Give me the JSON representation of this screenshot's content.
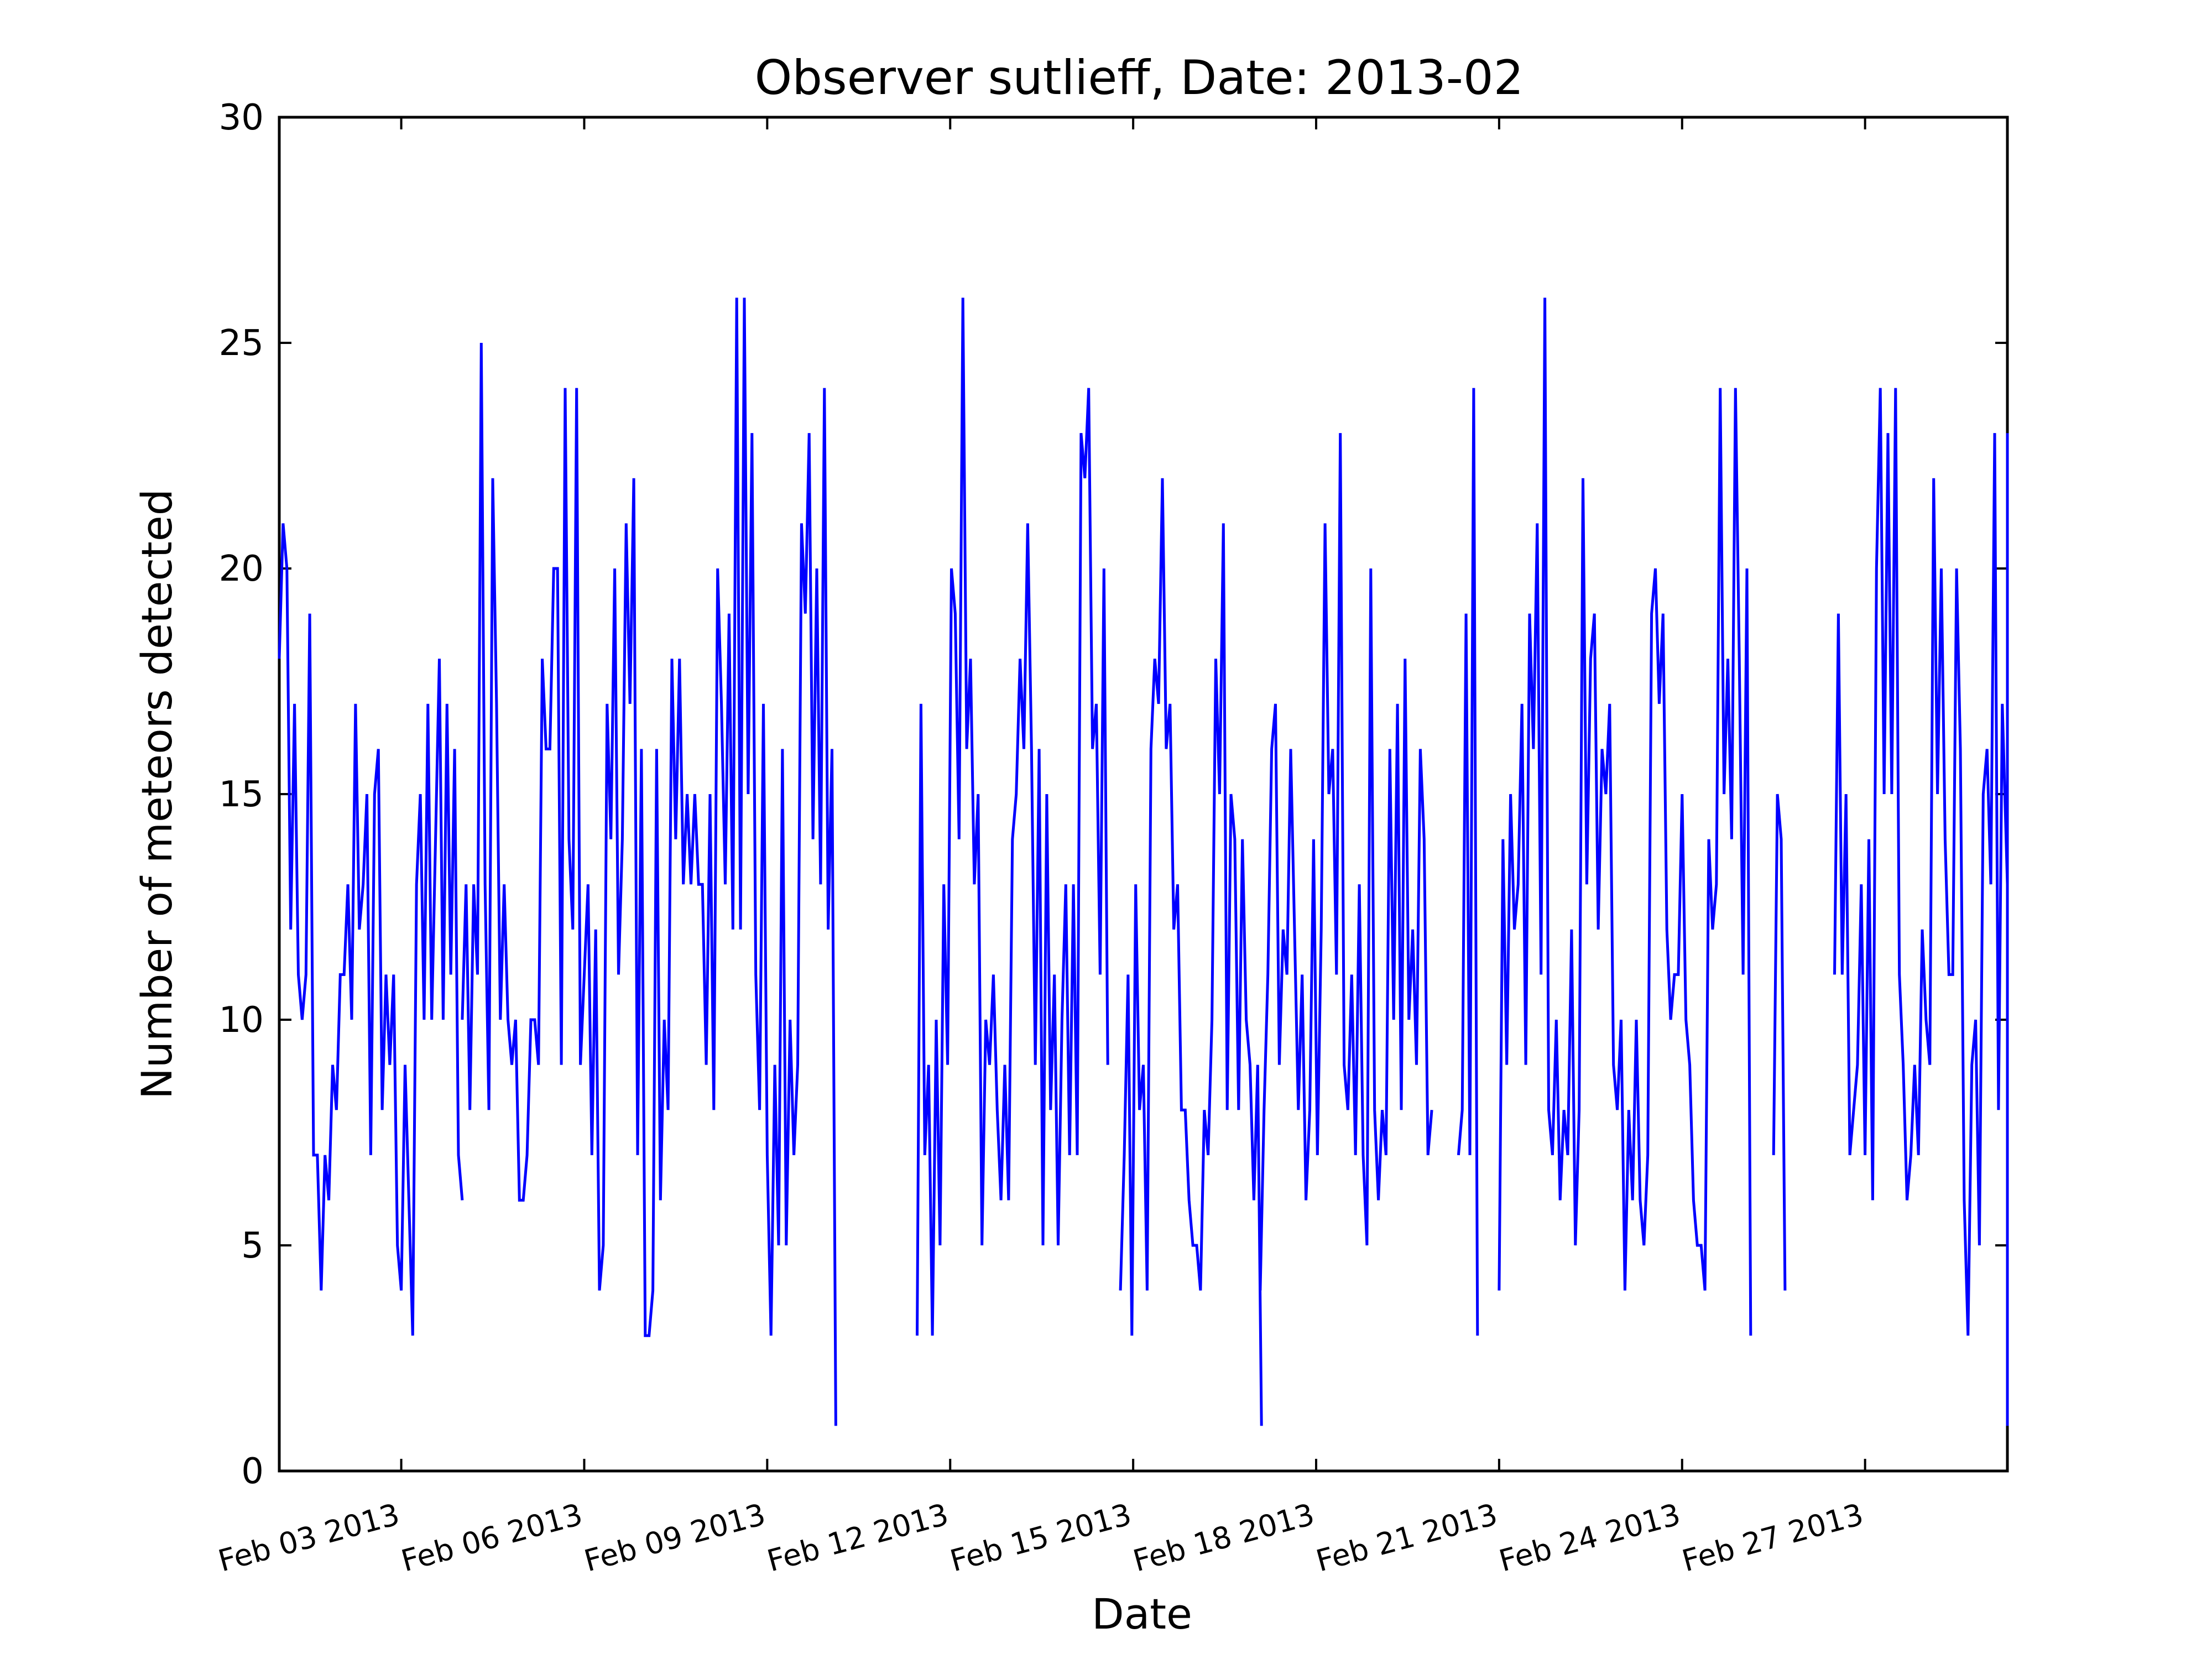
{
  "chart_data": {
    "type": "line",
    "title": "Observer sutlieff, Date: 2013-02",
    "xlabel": "Date",
    "ylabel": "Number of meteors detected",
    "x_axis": "date",
    "xlim": [
      "2013-02-01T00:00",
      "2013-03-01T08:00"
    ],
    "ylim": [
      0,
      30
    ],
    "yticks": [
      0,
      5,
      10,
      15,
      20,
      25,
      30
    ],
    "xticks": [
      {
        "date": "2013-02-03",
        "label": "Feb 03 2013"
      },
      {
        "date": "2013-02-06",
        "label": "Feb 06 2013"
      },
      {
        "date": "2013-02-09",
        "label": "Feb 09 2013"
      },
      {
        "date": "2013-02-12",
        "label": "Feb 12 2013"
      },
      {
        "date": "2013-02-15",
        "label": "Feb 15 2013"
      },
      {
        "date": "2013-02-18",
        "label": "Feb 18 2013"
      },
      {
        "date": "2013-02-21",
        "label": "Feb 21 2013"
      },
      {
        "date": "2013-02-24",
        "label": "Feb 24 2013"
      },
      {
        "date": "2013-02-27",
        "label": "Feb 27 2013"
      }
    ],
    "grid": false,
    "legend": "none",
    "line_color": "#0000ff",
    "series": [
      {
        "segments": [
          {
            "start": "2013-02-01T00:00",
            "step_hours": 1.5,
            "values": [
              18,
              21,
              20,
              12,
              17,
              11,
              10,
              11,
              19,
              7,
              7,
              4,
              7,
              6,
              9,
              8,
              11,
              11,
              13,
              10,
              17,
              12,
              13,
              15,
              7,
              15,
              16,
              8,
              11,
              9,
              11,
              5,
              4,
              9,
              6,
              3,
              13,
              15,
              10,
              17,
              10,
              14,
              18,
              10,
              17,
              11,
              16,
              7,
              6
            ]
          },
          {
            "start": "2013-02-04T00:00",
            "step_hours": 1.5,
            "values": [
              10,
              13,
              8,
              13,
              11,
              25,
              13,
              8,
              22,
              17,
              10,
              13,
              10,
              9,
              10,
              6,
              6,
              7,
              10,
              10,
              9,
              18,
              16,
              16,
              20,
              20,
              9,
              24,
              14,
              12,
              24,
              9,
              11,
              13,
              7,
              12,
              4,
              5,
              17,
              14,
              20,
              11,
              14,
              21,
              17,
              22,
              7,
              16,
              3,
              3,
              4,
              16,
              6,
              10,
              8,
              18,
              14,
              18,
              13,
              15,
              13,
              15,
              13,
              13,
              9,
              15,
              8,
              20,
              17,
              13,
              19,
              12,
              26,
              12,
              26,
              15,
              23,
              11,
              8,
              17,
              7,
              3,
              9,
              5,
              16,
              5,
              10,
              7,
              9,
              21,
              19,
              23,
              14,
              20,
              13,
              24,
              12,
              16,
              1
            ]
          },
          {
            "start": "2013-02-11T11:00",
            "step_hours": 1.5,
            "values": [
              3,
              17,
              7,
              9,
              3,
              10,
              5,
              13,
              9,
              20,
              19,
              14,
              26,
              16,
              18,
              13,
              15,
              5,
              10,
              9,
              11,
              8,
              6,
              9,
              6,
              14,
              15,
              18,
              16,
              21,
              16,
              9,
              16,
              5,
              15,
              8,
              11,
              5,
              10,
              13,
              7,
              13,
              7,
              23,
              22,
              24,
              16,
              17,
              11,
              20,
              9
            ]
          },
          {
            "start": "2013-02-14T19:00",
            "step_hours": 1.5,
            "values": [
              4,
              7,
              11,
              3,
              13,
              8,
              9,
              4,
              16,
              18,
              17,
              22,
              16,
              17,
              12,
              13,
              8,
              8,
              6,
              5,
              5,
              4,
              8,
              7,
              10,
              18,
              15,
              21,
              8,
              15,
              14,
              8,
              14,
              10,
              9,
              6,
              9,
              1
            ]
          },
          {
            "start": "2013-02-17T02:00",
            "step_hours": 1.5,
            "values": [
              4,
              8,
              11,
              16,
              17,
              9,
              12,
              11,
              16,
              12,
              8,
              11,
              6,
              8,
              14,
              7,
              12,
              21,
              15,
              16,
              11,
              23,
              9,
              8,
              11,
              7,
              13,
              7,
              5,
              20,
              8,
              6,
              8,
              7,
              16,
              10,
              17,
              8,
              18,
              10,
              12,
              9,
              16,
              14,
              7,
              8
            ]
          },
          {
            "start": "2013-02-20T08:00",
            "step_hours": 1.5,
            "values": [
              7,
              8,
              19,
              7,
              24,
              3
            ]
          },
          {
            "start": "2013-02-21T00:00",
            "step_hours": 1.5,
            "values": [
              4,
              14,
              9,
              15,
              12,
              13,
              17,
              9,
              19,
              16,
              21,
              11,
              26,
              8,
              7,
              10,
              6,
              8,
              7,
              12,
              5,
              8,
              22,
              13,
              18,
              19,
              12,
              16,
              15,
              17,
              9,
              8,
              10,
              4,
              8,
              6,
              10,
              6,
              5,
              7,
              19,
              20,
              17,
              19,
              12,
              10,
              11,
              11,
              15,
              10,
              9,
              6,
              5,
              5,
              4,
              14,
              12,
              13,
              24,
              15,
              18,
              14,
              24,
              18,
              11,
              20,
              3
            ]
          },
          {
            "start": "2013-02-25T12:00",
            "step_hours": 1.5,
            "values": [
              7,
              15,
              14,
              4
            ]
          },
          {
            "start": "2013-02-26T12:00",
            "step_hours": 1.5,
            "values": [
              11,
              19,
              11,
              15,
              7,
              8,
              9,
              13,
              7,
              14,
              6,
              20,
              24,
              15,
              23,
              15,
              24,
              11,
              9,
              6,
              7,
              9,
              7,
              12,
              10,
              9,
              22,
              15,
              20,
              14,
              11,
              11,
              20,
              16,
              6,
              3,
              9,
              10,
              5,
              15,
              16,
              13,
              23,
              8,
              17,
              14,
              13,
              23,
              9,
              15,
              7,
              8,
              8,
              5,
              7,
              13,
              5,
              1
            ]
          }
        ]
      }
    ]
  }
}
